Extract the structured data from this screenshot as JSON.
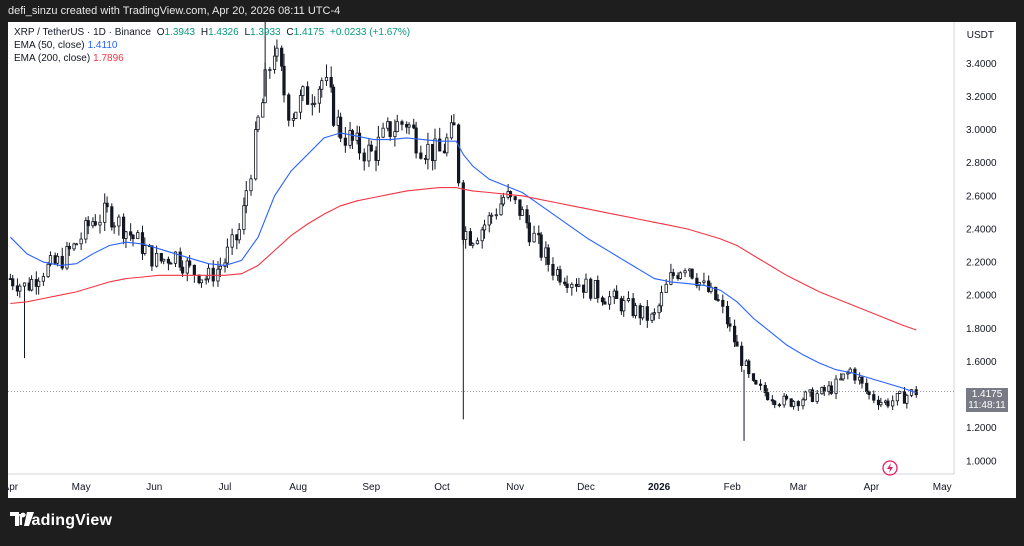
{
  "credit": "defi_sinzu created with TradingView.com, Apr 20, 2026 08:11 UTC-4",
  "legend": {
    "symbol": "XRP / TetherUS · 1D · Binance",
    "o_label": "O",
    "o_val": "1.3943",
    "h_label": "H",
    "h_val": "1.4326",
    "l_label": "L",
    "l_val": "1.3933",
    "c_label": "C",
    "c_val": "1.4175",
    "change": "+0.0233 (+1.67%)",
    "ema50_label": "EMA (50, close)",
    "ema50_val": "1.4110",
    "ema200_label": "EMA (200, close)",
    "ema200_val": "1.7896"
  },
  "currency": "USDT",
  "price_tag": {
    "price": "1.4175",
    "countdown": "11:48:11"
  },
  "brand": "TradingView",
  "colors": {
    "up": "#089981",
    "ema50": "#2962ff",
    "ema200": "#f23645",
    "candle": "#131722",
    "tag": "#787b86"
  },
  "icons": {
    "logo": "tradingview-logo-icon",
    "alert": "lightning-icon"
  },
  "chart_data": {
    "type": "line",
    "title": "",
    "x_ticks": [
      "Apr",
      "May",
      "Jun",
      "Jul",
      "Aug",
      "Sep",
      "Oct",
      "Nov",
      "Dec",
      "2026",
      "Feb",
      "Mar",
      "Apr",
      "May"
    ],
    "y_ticks": [
      "1.0000",
      "1.2000",
      "1.4000",
      "1.6000",
      "1.8000",
      "2.0000",
      "2.2000",
      "2.4000",
      "2.6000",
      "2.8000",
      "3.0000",
      "3.2000",
      "3.4000"
    ],
    "ylim": [
      0.92,
      3.65
    ],
    "x": [
      "2025-04-01",
      "2025-04-08",
      "2025-04-15",
      "2025-04-22",
      "2025-04-29",
      "2025-05-06",
      "2025-05-13",
      "2025-05-20",
      "2025-05-27",
      "2025-06-03",
      "2025-06-10",
      "2025-06-17",
      "2025-06-24",
      "2025-07-01",
      "2025-07-08",
      "2025-07-15",
      "2025-07-22",
      "2025-07-29",
      "2025-08-05",
      "2025-08-12",
      "2025-08-19",
      "2025-08-26",
      "2025-09-02",
      "2025-09-09",
      "2025-09-16",
      "2025-09-23",
      "2025-09-30",
      "2025-10-07",
      "2025-10-10",
      "2025-10-14",
      "2025-10-21",
      "2025-10-28",
      "2025-11-04",
      "2025-11-11",
      "2025-11-18",
      "2025-11-25",
      "2025-12-02",
      "2025-12-09",
      "2025-12-16",
      "2025-12-23",
      "2025-12-30",
      "2026-01-06",
      "2026-01-13",
      "2026-01-20",
      "2026-01-27",
      "2026-02-03",
      "2026-02-10",
      "2026-02-17",
      "2026-02-24",
      "2026-03-03",
      "2026-03-10",
      "2026-03-17",
      "2026-03-24",
      "2026-03-31",
      "2026-04-07",
      "2026-04-14",
      "2026-04-20"
    ],
    "series": [
      {
        "values": [
          2.1,
          2.05,
          2.15,
          2.2,
          2.3,
          2.45,
          2.5,
          2.4,
          2.3,
          2.2,
          2.25,
          2.15,
          2.1,
          2.2,
          2.4,
          3.0,
          3.5,
          3.1,
          3.2,
          3.3,
          3.0,
          2.9,
          2.85,
          3.0,
          3.05,
          2.9,
          2.85,
          3.0,
          2.4,
          2.35,
          2.45,
          2.6,
          2.5,
          2.3,
          2.15,
          2.1,
          2.05,
          2.0,
          1.95,
          1.9,
          1.85,
          2.1,
          2.2,
          2.05,
          1.95,
          1.7,
          1.45,
          1.4,
          1.35,
          1.38,
          1.4,
          1.45,
          1.55,
          1.4,
          1.35,
          1.38,
          1.4175
        ]
      },
      {
        "name": "EMA (50, close)",
        "values": [
          2.35,
          2.25,
          2.2,
          2.18,
          2.19,
          2.25,
          2.3,
          2.32,
          2.31,
          2.28,
          2.25,
          2.22,
          2.19,
          2.18,
          2.21,
          2.35,
          2.6,
          2.75,
          2.85,
          2.95,
          2.98,
          2.96,
          2.94,
          2.94,
          2.95,
          2.94,
          2.93,
          2.93,
          2.85,
          2.78,
          2.7,
          2.66,
          2.62,
          2.55,
          2.48,
          2.41,
          2.34,
          2.28,
          2.22,
          2.16,
          2.1,
          2.08,
          2.07,
          2.06,
          2.03,
          1.96,
          1.86,
          1.78,
          1.7,
          1.64,
          1.59,
          1.55,
          1.53,
          1.5,
          1.47,
          1.44,
          1.411
        ]
      },
      {
        "name": "EMA (200, close)",
        "values": [
          1.95,
          1.96,
          1.98,
          2.0,
          2.02,
          2.05,
          2.08,
          2.1,
          2.11,
          2.12,
          2.12,
          2.12,
          2.12,
          2.12,
          2.13,
          2.18,
          2.27,
          2.36,
          2.43,
          2.49,
          2.54,
          2.57,
          2.59,
          2.61,
          2.63,
          2.64,
          2.65,
          2.65,
          2.64,
          2.63,
          2.62,
          2.61,
          2.6,
          2.58,
          2.56,
          2.54,
          2.52,
          2.5,
          2.48,
          2.46,
          2.44,
          2.42,
          2.4,
          2.37,
          2.34,
          2.3,
          2.24,
          2.18,
          2.12,
          2.07,
          2.02,
          1.98,
          1.94,
          1.9,
          1.86,
          1.82,
          1.7896
        ]
      }
    ]
  }
}
